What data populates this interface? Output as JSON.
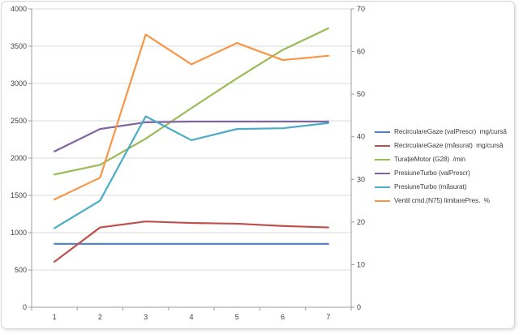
{
  "chart_data": {
    "type": "line",
    "title": "",
    "xlabel": "",
    "ylabel_left": "",
    "ylabel_right": "",
    "x_categories": [
      "1",
      "2",
      "3",
      "4",
      "5",
      "6",
      "7"
    ],
    "axes": {
      "left": {
        "min": 0,
        "max": 4000,
        "step": 500,
        "tick_labels": [
          "0",
          "500",
          "1000",
          "1500",
          "2000",
          "2500",
          "3000",
          "3500",
          "4000"
        ]
      },
      "right": {
        "min": 0,
        "max": 70,
        "step": 10,
        "tick_labels": [
          "0",
          "10",
          "20",
          "30",
          "40",
          "50",
          "60",
          "70"
        ]
      }
    },
    "grid": {
      "horizontal": true,
      "vertical": false
    },
    "legend_position": "right",
    "series": [
      {
        "name": "RecirculareGaze (valPrescr)  mg/cursă",
        "color": "#4F81BD",
        "axis": "left",
        "values": [
          850,
          850,
          850,
          850,
          850,
          850,
          850
        ]
      },
      {
        "name": "RecirculareGaze (măsurat)  mg/cursă",
        "color": "#C0504D",
        "axis": "left",
        "values": [
          610,
          1070,
          1150,
          1130,
          1120,
          1090,
          1070
        ]
      },
      {
        "name": "TurațieMotor (G28)  /min",
        "color": "#9BBB59",
        "axis": "left",
        "values": [
          1780,
          1910,
          2260,
          2670,
          3070,
          3450,
          3740
        ]
      },
      {
        "name": "PresiuneTurbo (valPrescr)",
        "color": "#8064A2",
        "axis": "left",
        "values": [
          2090,
          2390,
          2480,
          2490,
          2490,
          2490,
          2490
        ]
      },
      {
        "name": "PresiuneTurbo (măsurat)",
        "color": "#4BACC6",
        "axis": "left",
        "values": [
          1060,
          1430,
          2560,
          2240,
          2390,
          2400,
          2470
        ]
      },
      {
        "name": "Ventil cmd.(N75) limitarePres.  %",
        "color": "#F79646",
        "axis": "right",
        "values": [
          25.3,
          30.4,
          64,
          57,
          62,
          58,
          59
        ]
      }
    ]
  },
  "colors": {
    "background": "#ffffff",
    "frame_border": "#d4d4d4",
    "gridline": "#d9d9d9",
    "axis_line": "#9c9c9c",
    "axis_text": "#3f3f3f"
  }
}
